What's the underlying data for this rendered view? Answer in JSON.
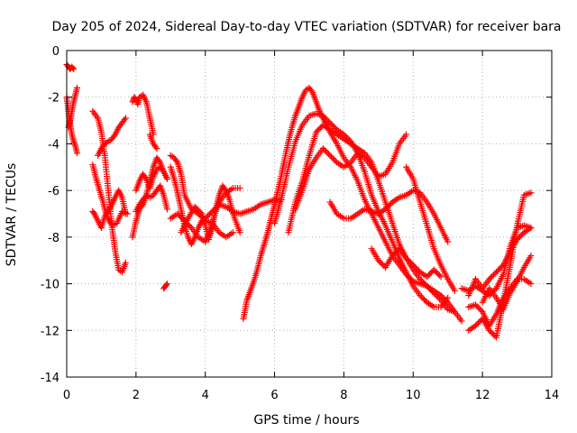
{
  "chart_data": {
    "type": "scatter",
    "title": "Day 205 of 2024, Sidereal Day-to-day VTEC variation (SDTVAR) for receiver bara",
    "xlabel": "GPS time / hours",
    "ylabel": "SDTVAR / TECUs",
    "xlim": [
      0,
      14
    ],
    "ylim": [
      -14,
      0
    ],
    "xticks": [
      "0",
      "2",
      "4",
      "6",
      "8",
      "10",
      "12",
      "14"
    ],
    "yticks": [
      "0",
      "-2",
      "-4",
      "-6",
      "-8",
      "-10",
      "-12",
      "-14"
    ],
    "grid": true,
    "marker": "+",
    "color": "#ff0000",
    "series": [
      {
        "name": "s1",
        "x": [
          0.0,
          0.05,
          0.1,
          0.15,
          0.2
        ],
        "y": [
          -0.6,
          -0.7,
          -0.8,
          -0.7,
          -0.8
        ]
      },
      {
        "name": "s2",
        "x": [
          0.0,
          0.05,
          0.1,
          0.15,
          0.2,
          0.25,
          0.3
        ],
        "y": [
          -2.0,
          -2.6,
          -3.2,
          -3.6,
          -3.9,
          -4.1,
          -4.4
        ]
      },
      {
        "name": "s3",
        "x": [
          0.05,
          0.1,
          0.15,
          0.2,
          0.25,
          0.3
        ],
        "y": [
          -3.3,
          -3.0,
          -2.6,
          -2.2,
          -1.9,
          -1.6
        ]
      },
      {
        "name": "s4",
        "x": [
          0.75,
          0.9,
          1.0,
          1.1,
          1.2,
          1.3,
          1.4,
          1.5,
          1.6,
          1.7
        ],
        "y": [
          -2.6,
          -2.9,
          -3.5,
          -4.5,
          -6.0,
          -7.5,
          -8.6,
          -9.4,
          -9.5,
          -9.1
        ]
      },
      {
        "name": "s5",
        "x": [
          0.75,
          0.8,
          0.9,
          1.0,
          1.1,
          1.2,
          1.3,
          1.4,
          1.5,
          1.6,
          1.7
        ],
        "y": [
          -6.9,
          -7.0,
          -7.3,
          -7.6,
          -7.1,
          -6.9,
          -6.6,
          -6.3,
          -6.0,
          -6.3,
          -7.0
        ]
      },
      {
        "name": "s6",
        "x": [
          0.75,
          0.85,
          0.95,
          1.05,
          1.15,
          1.3,
          1.45,
          1.6,
          1.75
        ],
        "y": [
          -4.9,
          -5.5,
          -6.0,
          -6.5,
          -7.1,
          -7.5,
          -7.4,
          -6.9,
          -7.0
        ]
      },
      {
        "name": "s7",
        "x": [
          0.9,
          1.0,
          1.1,
          1.2,
          1.3,
          1.4,
          1.5,
          1.6,
          1.7
        ],
        "y": [
          -4.5,
          -4.2,
          -4.0,
          -3.9,
          -3.8,
          -3.6,
          -3.3,
          -3.1,
          -2.9
        ]
      },
      {
        "name": "s8",
        "x": [
          1.9,
          1.95,
          2.0,
          2.05,
          2.1,
          2.2,
          2.3,
          2.4,
          2.5
        ],
        "y": [
          -2.2,
          -2.0,
          -2.1,
          -2.3,
          -2.0,
          -1.9,
          -2.2,
          -2.9,
          -3.6
        ]
      },
      {
        "name": "s9",
        "x": [
          1.9,
          2.0,
          2.1,
          2.2,
          2.3,
          2.4,
          2.5,
          2.6,
          2.7,
          2.8,
          2.9
        ],
        "y": [
          -8.0,
          -7.3,
          -6.8,
          -6.6,
          -6.2,
          -5.6,
          -5.0,
          -4.6,
          -4.8,
          -5.2,
          -5.5
        ]
      },
      {
        "name": "s10",
        "x": [
          2.0,
          2.1,
          2.2,
          2.3,
          2.4,
          2.5,
          2.6,
          2.7,
          2.8,
          2.9
        ],
        "y": [
          -6.9,
          -6.6,
          -6.4,
          -6.2,
          -6.3,
          -6.2,
          -6.0,
          -5.8,
          -6.2,
          -6.8
        ]
      },
      {
        "name": "s11",
        "x": [
          2.0,
          2.1,
          2.2,
          2.3,
          2.4,
          2.5,
          2.6,
          2.7,
          2.8,
          2.9
        ],
        "y": [
          -6.0,
          -5.6,
          -5.3,
          -5.5,
          -5.9,
          -5.4,
          -5.1,
          -5.0,
          -5.2,
          -5.5
        ]
      },
      {
        "name": "s12",
        "x": [
          2.4,
          2.5,
          2.6
        ],
        "y": [
          -3.6,
          -4.0,
          -4.2
        ]
      },
      {
        "name": "s13",
        "x": [
          2.8,
          2.85,
          2.9
        ],
        "y": [
          -10.2,
          -10.1,
          -10.0
        ]
      },
      {
        "name": "s14",
        "x": [
          3.0,
          3.1,
          3.2,
          3.3,
          3.4,
          3.5,
          3.6,
          3.7,
          3.8,
          3.9,
          4.0,
          4.2,
          4.4,
          4.6,
          4.8,
          5.0,
          5.2,
          5.4,
          5.6,
          5.8,
          6.0,
          6.2
        ],
        "y": [
          -5.0,
          -5.5,
          -6.1,
          -6.8,
          -7.5,
          -8.0,
          -8.3,
          -8.0,
          -7.6,
          -7.3,
          -7.2,
          -6.9,
          -6.6,
          -6.7,
          -6.9,
          -7.0,
          -6.9,
          -6.8,
          -6.6,
          -6.5,
          -6.4,
          -6.4
        ]
      },
      {
        "name": "s15",
        "x": [
          3.0,
          3.1,
          3.2,
          3.3,
          3.4,
          3.6,
          3.8,
          4.0,
          4.2,
          4.4,
          4.6,
          4.8
        ],
        "y": [
          -4.5,
          -4.6,
          -4.8,
          -5.3,
          -6.2,
          -6.8,
          -7.0,
          -7.3,
          -7.4,
          -7.8,
          -8.0,
          -7.8
        ]
      },
      {
        "name": "s16",
        "x": [
          3.0,
          3.2,
          3.4,
          3.6,
          3.8,
          4.0,
          4.1,
          4.2,
          4.3,
          4.4,
          4.6,
          4.8,
          5.0
        ],
        "y": [
          -7.2,
          -7.0,
          -7.3,
          -7.6,
          -8.0,
          -8.2,
          -7.9,
          -7.4,
          -6.9,
          -6.5,
          -6.1,
          -5.9,
          -5.9
        ]
      },
      {
        "name": "s17",
        "x": [
          3.3,
          3.5,
          3.7,
          3.9,
          4.0,
          4.1,
          4.2,
          4.3,
          4.4,
          4.5,
          4.6,
          4.7,
          4.8,
          5.0
        ],
        "y": [
          -7.8,
          -7.2,
          -6.7,
          -7.0,
          -7.5,
          -8.1,
          -7.6,
          -6.8,
          -6.2,
          -5.8,
          -6.0,
          -6.4,
          -7.0,
          -7.8
        ]
      },
      {
        "name": "s18",
        "x": [
          5.1,
          5.2,
          5.3,
          5.4,
          5.5,
          5.6,
          5.7,
          5.8,
          5.9,
          6.0,
          6.1,
          6.2,
          6.3,
          6.4,
          6.5,
          6.6,
          6.7,
          6.8,
          6.9,
          7.0,
          7.1,
          7.2,
          7.3,
          7.4,
          7.5,
          7.6,
          7.8,
          8.0,
          8.2,
          8.4,
          8.6,
          8.8,
          9.0,
          9.2,
          9.4,
          9.6,
          9.8,
          10.0,
          10.2,
          10.4,
          10.6,
          10.8,
          11.0,
          11.2,
          11.4
        ],
        "y": [
          -11.5,
          -10.7,
          -10.3,
          -9.9,
          -9.4,
          -8.8,
          -8.3,
          -7.8,
          -7.2,
          -6.6,
          -6.0,
          -5.3,
          -4.6,
          -3.9,
          -3.3,
          -2.8,
          -2.4,
          -2.0,
          -1.7,
          -1.6,
          -1.8,
          -2.2,
          -2.6,
          -2.9,
          -3.2,
          -3.5,
          -4.0,
          -4.6,
          -5.0,
          -5.6,
          -6.4,
          -7.0,
          -7.6,
          -8.2,
          -8.8,
          -9.2,
          -9.6,
          -9.9,
          -10.0,
          -10.1,
          -10.3,
          -10.5,
          -10.8,
          -11.2,
          -11.6
        ]
      },
      {
        "name": "s19",
        "x": [
          6.0,
          6.2,
          6.4,
          6.6,
          6.8,
          7.0,
          7.2,
          7.4,
          7.6,
          7.8,
          8.0,
          8.2,
          8.4,
          8.6,
          8.8,
          9.0,
          9.2,
          9.4,
          9.6,
          9.8,
          10.0,
          10.2,
          10.4,
          10.6,
          10.8,
          11.0
        ],
        "y": [
          -7.4,
          -6.3,
          -5.0,
          -3.9,
          -3.2,
          -2.8,
          -2.7,
          -2.8,
          -3.1,
          -3.4,
          -3.6,
          -3.9,
          -4.4,
          -5.2,
          -6.2,
          -6.9,
          -7.5,
          -8.2,
          -8.9,
          -9.5,
          -10.1,
          -10.5,
          -10.8,
          -11.0,
          -11.0,
          -10.6
        ]
      },
      {
        "name": "s20",
        "x": [
          6.4,
          6.6,
          6.8,
          7.0,
          7.2,
          7.4,
          7.6,
          7.8,
          8.0,
          8.2,
          8.4,
          8.6,
          8.8,
          9.0,
          9.2,
          9.4,
          9.6,
          9.8,
          10.0,
          10.2,
          10.4,
          10.6,
          10.8,
          11.0,
          11.2
        ],
        "y": [
          -7.8,
          -6.5,
          -5.6,
          -4.5,
          -3.5,
          -3.2,
          -3.4,
          -3.6,
          -3.8,
          -4.0,
          -4.2,
          -4.4,
          -4.8,
          -5.6,
          -6.5,
          -7.4,
          -8.3,
          -8.9,
          -9.4,
          -9.8,
          -10.1,
          -10.4,
          -10.7,
          -11.1,
          -11.2
        ]
      },
      {
        "name": "s21",
        "x": [
          6.6,
          6.8,
          7.0,
          7.2,
          7.4,
          7.6,
          7.8,
          8.0,
          8.2,
          8.4,
          8.6,
          8.8,
          9.0,
          9.2,
          9.4,
          9.6,
          9.8
        ],
        "y": [
          -6.8,
          -6.0,
          -5.1,
          -4.6,
          -4.2,
          -4.5,
          -4.8,
          -5.0,
          -4.8,
          -4.4,
          -4.6,
          -5.0,
          -5.4,
          -5.3,
          -4.8,
          -4.0,
          -3.6
        ]
      },
      {
        "name": "s22",
        "x": [
          7.6,
          7.8,
          8.0,
          8.2,
          8.4,
          8.6,
          8.8,
          9.0,
          9.2,
          9.4,
          9.6,
          9.8,
          10.0,
          10.2,
          10.4,
          10.6,
          10.8,
          11.0
        ],
        "y": [
          -6.5,
          -7.0,
          -7.2,
          -7.2,
          -7.0,
          -6.8,
          -6.9,
          -7.0,
          -6.8,
          -6.5,
          -6.3,
          -6.2,
          -6.0,
          -6.1,
          -6.5,
          -7.0,
          -7.6,
          -8.2
        ]
      },
      {
        "name": "s23",
        "x": [
          8.8,
          9.0,
          9.2,
          9.4,
          9.6,
          9.8,
          10.0,
          10.2,
          10.4,
          10.6,
          10.8
        ],
        "y": [
          -8.5,
          -9.0,
          -9.3,
          -8.8,
          -8.5,
          -8.9,
          -9.2,
          -9.5,
          -9.7,
          -9.4,
          -9.7
        ]
      },
      {
        "name": "s24",
        "x": [
          9.8,
          10.0,
          10.2,
          10.4,
          10.6,
          10.8,
          11.0,
          11.2
        ],
        "y": [
          -5.0,
          -5.5,
          -6.5,
          -7.5,
          -8.5,
          -9.2,
          -9.8,
          -10.3
        ]
      },
      {
        "name": "s25",
        "x": [
          11.4,
          11.6,
          11.8,
          12.0,
          12.2,
          12.4,
          12.6,
          12.8,
          13.0,
          13.2,
          13.4
        ],
        "y": [
          -10.2,
          -10.3,
          -10.1,
          -10.3,
          -10.5,
          -10.2,
          -9.6,
          -8.4,
          -7.6,
          -7.5,
          -7.6
        ]
      },
      {
        "name": "s26",
        "x": [
          11.6,
          11.8,
          12.0,
          12.2,
          12.4,
          12.6,
          12.8,
          13.0,
          13.2,
          13.4
        ],
        "y": [
          -12.0,
          -11.8,
          -11.5,
          -12.0,
          -12.3,
          -10.8,
          -9.2,
          -7.5,
          -6.2,
          -6.1
        ]
      },
      {
        "name": "s27",
        "x": [
          11.6,
          11.8,
          12.0,
          12.2,
          12.4,
          12.6,
          12.8,
          13.0,
          13.2,
          13.4
        ],
        "y": [
          -11.0,
          -10.9,
          -11.2,
          -11.8,
          -11.3,
          -10.6,
          -10.2,
          -9.8,
          -9.8,
          -10.0
        ]
      },
      {
        "name": "s28",
        "x": [
          12.0,
          12.2,
          12.4,
          12.6,
          12.8,
          13.0,
          13.2,
          13.4
        ],
        "y": [
          -10.8,
          -10.2,
          -10.6,
          -11.1,
          -10.4,
          -9.9,
          -9.3,
          -8.8
        ]
      },
      {
        "name": "s29",
        "x": [
          11.6,
          11.8,
          12.0,
          12.2,
          12.4,
          12.6,
          12.8,
          13.0,
          13.2,
          13.4
        ],
        "y": [
          -10.5,
          -9.8,
          -10.2,
          -9.8,
          -9.5,
          -9.2,
          -8.6,
          -8.1,
          -7.8,
          -7.6
        ]
      }
    ]
  }
}
